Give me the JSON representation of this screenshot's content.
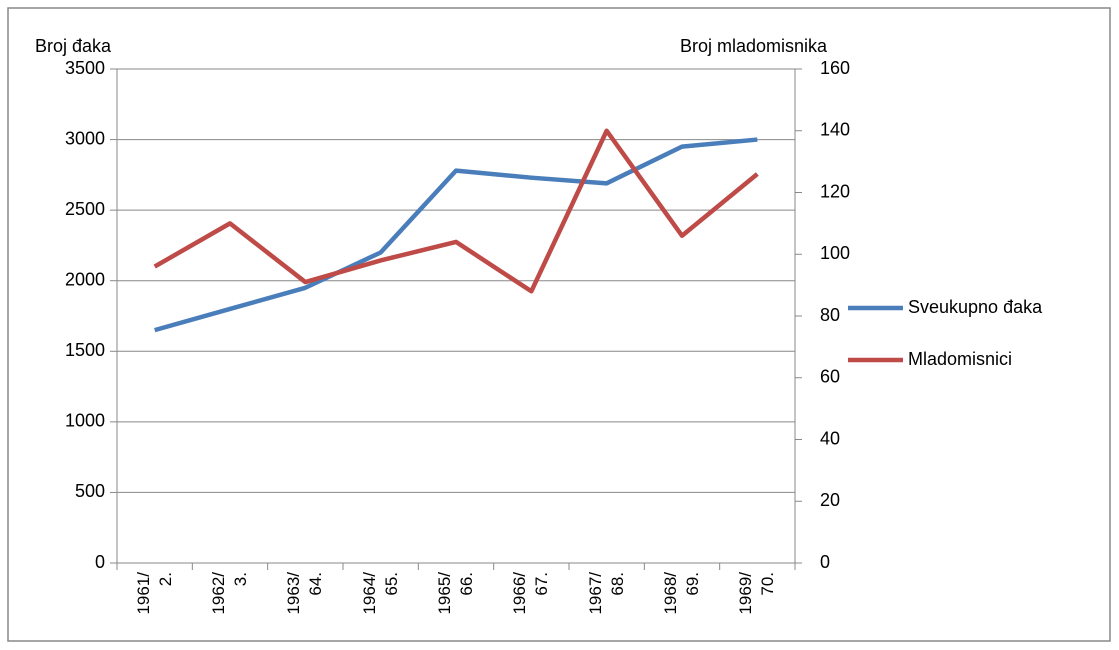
{
  "chart_data": {
    "type": "line",
    "y_axis_label": "Broj đaka",
    "y2_axis_label": "Broj mladomisnika",
    "categories": [
      "1961/\n2.",
      "1962/\n3.",
      "1963/\n64.",
      "1964/\n65.",
      "1965/\n66.",
      "1966/\n67.",
      "1967/\n68.",
      "1968/\n69.",
      "1969/\n70."
    ],
    "series": [
      {
        "name": "Sveukupno đaka",
        "color": "#4a7ebb",
        "values": [
          1650,
          1800,
          1950,
          2200,
          2780,
          2730,
          2690,
          2950,
          3000
        ]
      },
      {
        "name": "Mladomisnici",
        "color": "#be4b48",
        "axis": "y2",
        "values": [
          96,
          110,
          91,
          98,
          104,
          88,
          140,
          106,
          126
        ]
      }
    ],
    "ylim": [
      0,
      3500
    ],
    "yticks": [
      0,
      500,
      1000,
      1500,
      2000,
      2500,
      3000,
      3500
    ],
    "y2lim": [
      0,
      160
    ],
    "y2ticks": [
      0,
      20,
      40,
      60,
      80,
      100,
      120,
      140,
      160
    ],
    "grid": true,
    "legend": "right"
  }
}
